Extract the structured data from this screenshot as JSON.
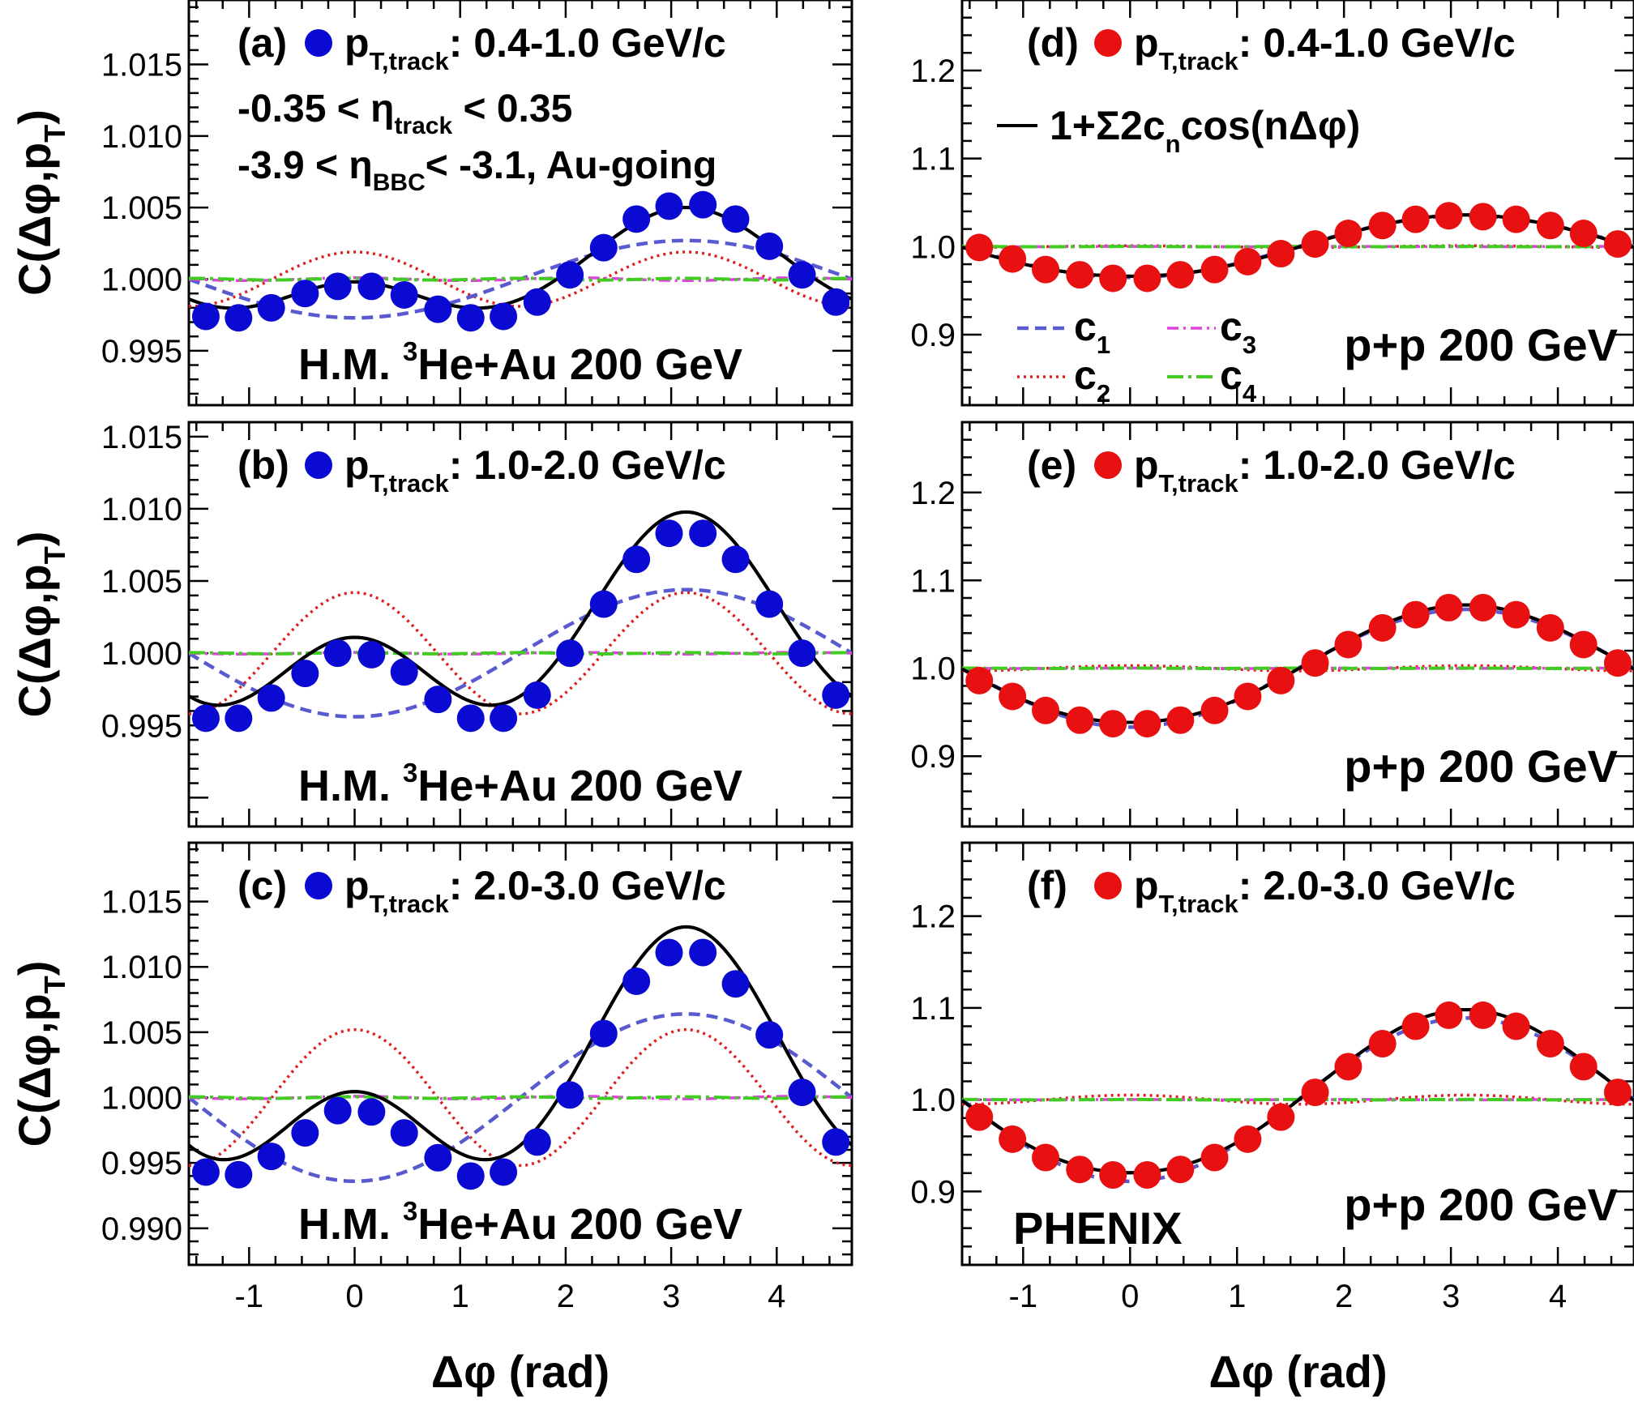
{
  "figure": {
    "x_axis_label": "Δφ (rad)",
    "y_axis_label_main": "C(Δφ,p",
    "y_axis_label_sub": "T",
    "y_axis_label_close": ")",
    "experiment_label": "PHENIX"
  },
  "legend": {
    "fit_label": "1+Σ2c",
    "fit_sub": "n",
    "fit_tail": "cos(nΔφ)",
    "c1": "c",
    "c1_sub": "1",
    "c2": "c",
    "c2_sub": "2",
    "c3": "c",
    "c3_sub": "3",
    "c4": "c",
    "c4_sub": "4"
  },
  "colors": {
    "heau_marker": "#0a0ad2",
    "pp_marker": "#e81010",
    "fit_line": "#000000",
    "c1": "#5a5ad0",
    "c2": "#dd2020",
    "c3": "#e040e0",
    "c4": "#40cc20"
  },
  "chart_data": [
    {
      "id": "a",
      "type": "scatter",
      "panel_label": "(a)",
      "pt_prefix": "p",
      "pt_sub": "T,track",
      "pt_range": ": 0.4-1.0 GeV/c",
      "eta_track": "-0.35 < η",
      "eta_track_sub": "track",
      "eta_track_tail": " < 0.35",
      "eta_bbc": "-3.9 < η",
      "eta_bbc_sub": "BBC",
      "eta_bbc_tail": "< -3.1, Au-going",
      "system": "H.M. ",
      "system_sup": "3",
      "system_tail": "He+Au 200 GeV",
      "x": [
        -1.41,
        -1.1,
        -0.79,
        -0.47,
        -0.16,
        0.16,
        0.47,
        0.79,
        1.1,
        1.41,
        1.73,
        2.04,
        2.36,
        2.67,
        2.98,
        3.3,
        3.61,
        3.93,
        4.24,
        4.56
      ],
      "y": [
        0.9974,
        0.9973,
        0.998,
        0.999,
        0.9995,
        0.9995,
        0.9989,
        0.9979,
        0.9973,
        0.9974,
        0.9984,
        1.0003,
        1.0022,
        1.0042,
        1.0051,
        1.0052,
        1.0042,
        1.0023,
        1.0003,
        0.9984
      ],
      "fit": {
        "c1": -0.00135,
        "c2": 0.00095,
        "c3": 5e-05,
        "c4": 3e-05,
        "c0": 1.00045
      },
      "xlim": [
        -1.571,
        4.712
      ],
      "ylim": [
        0.9912,
        1.0195
      ],
      "yticks": [
        0.995,
        1.0,
        1.005,
        1.01,
        1.015
      ],
      "yticklabels": [
        "0.995",
        "1.000",
        "1.005",
        "1.010",
        "1.015"
      ],
      "xticks": [
        -1,
        0,
        1,
        2,
        3,
        4
      ],
      "xticklabels": [
        "-1",
        "0",
        "1",
        "2",
        "3",
        "4"
      ]
    },
    {
      "id": "b",
      "type": "scatter",
      "panel_label": "(b)",
      "pt_prefix": "p",
      "pt_sub": "T,track",
      "pt_range": ": 1.0-2.0 GeV/c",
      "system": "H.M. ",
      "system_sup": "3",
      "system_tail": "He+Au 200 GeV",
      "x": [
        -1.41,
        -1.1,
        -0.79,
        -0.47,
        -0.16,
        0.16,
        0.47,
        0.79,
        1.1,
        1.41,
        1.73,
        2.04,
        2.36,
        2.67,
        2.98,
        3.3,
        3.61,
        3.93,
        4.24,
        4.56
      ],
      "y": [
        0.9955,
        0.9955,
        0.9969,
        0.9986,
        1.0,
        0.9999,
        0.9987,
        0.9968,
        0.9955,
        0.9955,
        0.9971,
        1.0,
        1.0034,
        1.0065,
        1.0083,
        1.0083,
        1.0065,
        1.0034,
        1.0,
        0.9971
      ],
      "fit": {
        "c1": -0.0022,
        "c2": 0.0021,
        "c3": 3e-05,
        "c4": 2e-05,
        "c0": 1.0012
      },
      "xlim": [
        -1.571,
        4.712
      ],
      "ylim": [
        0.988,
        1.016
      ],
      "yticks": [
        0.995,
        1.0,
        1.005,
        1.01,
        1.015
      ],
      "yticklabels": [
        "0.995",
        "1.000",
        "1.005",
        "1.010",
        "1.015"
      ],
      "xticks": [
        -1,
        0,
        1,
        2,
        3,
        4
      ],
      "xticklabels": [
        "-1",
        "0",
        "1",
        "2",
        "3",
        "4"
      ]
    },
    {
      "id": "c",
      "type": "scatter",
      "panel_label": "(c)",
      "pt_prefix": "p",
      "pt_sub": "T,track",
      "pt_range": ": 2.0-3.0 GeV/c",
      "system": "H.M. ",
      "system_sup": "3",
      "system_tail": "He+Au 200 GeV",
      "x": [
        -1.41,
        -1.1,
        -0.79,
        -0.47,
        -0.16,
        0.16,
        0.47,
        0.79,
        1.1,
        1.41,
        1.73,
        2.04,
        2.36,
        2.67,
        2.98,
        3.3,
        3.61,
        3.93,
        4.24,
        4.56
      ],
      "y": [
        0.9943,
        0.9941,
        0.9955,
        0.9973,
        0.999,
        0.9989,
        0.9973,
        0.9954,
        0.994,
        0.9943,
        0.9966,
        1.0002,
        1.0049,
        1.0089,
        1.0111,
        1.0111,
        1.0087,
        1.0048,
        1.0004,
        0.9966
      ],
      "fit": {
        "c1": -0.0032,
        "c2": 0.0026,
        "c3": 5e-05,
        "c4": 3e-05,
        "c0": 1.0015
      },
      "xlim": [
        -1.571,
        4.712
      ],
      "ylim": [
        0.9872,
        1.0195
      ],
      "yticks": [
        0.99,
        0.995,
        1.0,
        1.005,
        1.01,
        1.015
      ],
      "yticklabels": [
        "0.990",
        "0.995",
        "1.000",
        "1.005",
        "1.010",
        "1.015"
      ],
      "xticks": [
        -1,
        0,
        1,
        2,
        3,
        4
      ],
      "xticklabels": [
        "-1",
        "0",
        "1",
        "2",
        "3",
        "4"
      ]
    },
    {
      "id": "d",
      "type": "scatter",
      "panel_label": "(d)",
      "pt_prefix": "p",
      "pt_sub": "T,track",
      "pt_range": ": 0.4-1.0 GeV/c",
      "system": "p+p 200 GeV",
      "x": [
        -1.41,
        -1.1,
        -0.79,
        -0.47,
        -0.16,
        0.16,
        0.47,
        0.79,
        1.1,
        1.41,
        1.73,
        2.04,
        2.36,
        2.67,
        2.98,
        3.3,
        3.61,
        3.93,
        4.24,
        4.56
      ],
      "y": [
        0.999,
        0.986,
        0.974,
        0.968,
        0.964,
        0.964,
        0.968,
        0.974,
        0.983,
        0.992,
        1.003,
        1.015,
        1.024,
        1.031,
        1.035,
        1.034,
        1.031,
        1.024,
        1.015,
        1.003
      ],
      "fit": {
        "c1": -0.0175,
        "c2": 0.0005,
        "c3": 0.0001,
        "c4": 0.0001,
        "c0": 1.0
      },
      "xlim": [
        -1.571,
        4.712
      ],
      "ylim": [
        0.82,
        1.28
      ],
      "yticks": [
        0.9,
        1.0,
        1.1,
        1.2
      ],
      "yticklabels": [
        "0.9",
        "1.0",
        "1.1",
        "1.2"
      ],
      "xticks": [
        -1,
        0,
        1,
        2,
        3,
        4
      ],
      "xticklabels": [
        "-1",
        "0",
        "1",
        "2",
        "3",
        "4"
      ]
    },
    {
      "id": "e",
      "type": "scatter",
      "panel_label": "(e)",
      "pt_prefix": "p",
      "pt_sub": "T,track",
      "pt_range": ": 1.0-2.0 GeV/c",
      "system": "p+p 200 GeV",
      "x": [
        -1.41,
        -1.1,
        -0.79,
        -0.47,
        -0.16,
        0.16,
        0.47,
        0.79,
        1.1,
        1.41,
        1.73,
        2.04,
        2.36,
        2.67,
        2.98,
        3.3,
        3.61,
        3.93,
        4.24,
        4.56
      ],
      "y": [
        0.986,
        0.968,
        0.952,
        0.941,
        0.937,
        0.937,
        0.941,
        0.952,
        0.968,
        0.986,
        1.006,
        1.027,
        1.046,
        1.061,
        1.069,
        1.069,
        1.061,
        1.046,
        1.027,
        1.006
      ],
      "fit": {
        "c1": -0.0335,
        "c2": 0.0015,
        "c3": 0.0001,
        "c4": 0.0001,
        "c0": 1.002
      },
      "xlim": [
        -1.571,
        4.712
      ],
      "ylim": [
        0.82,
        1.28
      ],
      "yticks": [
        0.9,
        1.0,
        1.1,
        1.2
      ],
      "yticklabels": [
        "0.9",
        "1.0",
        "1.1",
        "1.2"
      ],
      "xticks": [
        -1,
        0,
        1,
        2,
        3,
        4
      ],
      "xticklabels": [
        "-1",
        "0",
        "1",
        "2",
        "3",
        "4"
      ]
    },
    {
      "id": "f",
      "type": "scatter",
      "panel_label": "(f)",
      "pt_prefix": "p",
      "pt_sub": "T,track",
      "pt_range": ": 2.0-3.0 GeV/c",
      "system": "p+p 200 GeV",
      "x": [
        -1.41,
        -1.1,
        -0.79,
        -0.47,
        -0.16,
        0.16,
        0.47,
        0.79,
        1.1,
        1.41,
        1.73,
        2.04,
        2.36,
        2.67,
        2.98,
        3.3,
        3.61,
        3.93,
        4.24,
        4.56
      ],
      "y": [
        0.981,
        0.957,
        0.937,
        0.924,
        0.918,
        0.918,
        0.924,
        0.937,
        0.957,
        0.981,
        1.008,
        1.036,
        1.061,
        1.08,
        1.092,
        1.092,
        1.08,
        1.061,
        1.036,
        1.008
      ],
      "fit": {
        "c1": -0.0445,
        "c2": 0.0025,
        "c3": 0.0001,
        "c4": 0.0001,
        "c0": 1.004
      },
      "xlim": [
        -1.571,
        4.712
      ],
      "ylim": [
        0.82,
        1.28
      ],
      "yticks": [
        0.9,
        1.0,
        1.1,
        1.2
      ],
      "yticklabels": [
        "0.9",
        "1.0",
        "1.1",
        "1.2"
      ],
      "xticks": [
        -1,
        0,
        1,
        2,
        3,
        4
      ],
      "xticklabels": [
        "-1",
        "0",
        "1",
        "2",
        "3",
        "4"
      ]
    }
  ]
}
